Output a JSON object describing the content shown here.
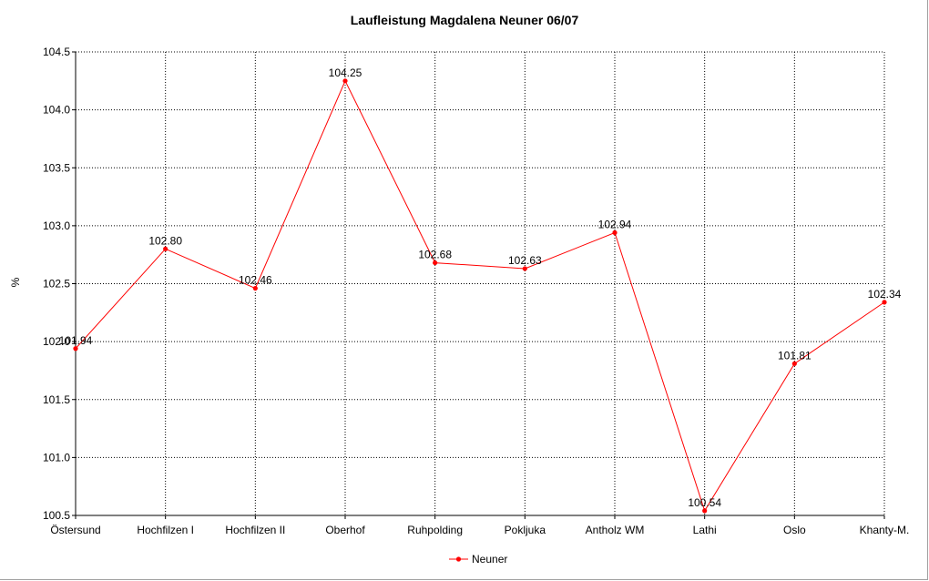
{
  "chart_data": {
    "type": "line",
    "title": "Laufleistung Magdalena Neuner 06/07",
    "xlabel": "",
    "ylabel": "%",
    "categories": [
      "Östersund",
      "Hochfilzen I",
      "Hochfilzen II",
      "Oberhof",
      "Ruhpolding",
      "Pokljuka",
      "Antholz WM",
      "Lathi",
      "Oslo",
      "Khanty-M."
    ],
    "series": [
      {
        "name": "Neuner",
        "color": "#ff0000",
        "values": [
          101.94,
          102.8,
          102.46,
          104.25,
          102.68,
          102.63,
          102.94,
          100.54,
          101.81,
          102.34
        ],
        "labels": [
          "101.94",
          "102.80",
          "102.46",
          "104.25",
          "102.68",
          "102.63",
          "102.94",
          "100.54",
          "101.81",
          "102.34"
        ]
      }
    ],
    "ylim": [
      100.5,
      104.5
    ],
    "yticks": [
      100.5,
      101.0,
      101.5,
      102.0,
      102.5,
      103.0,
      103.5,
      104.0,
      104.5
    ],
    "ytick_labels": [
      "100.5",
      "101.0",
      "101.5",
      "102.0",
      "102.5",
      "103.0",
      "103.5",
      "104.0",
      "104.5"
    ],
    "grid": true,
    "legend": "bottom-center"
  }
}
